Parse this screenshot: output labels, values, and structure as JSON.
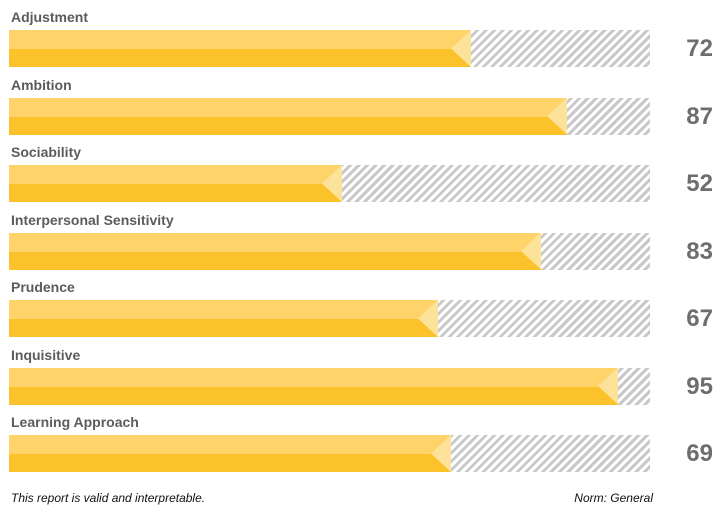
{
  "chart_data": {
    "type": "bar",
    "orientation": "horizontal",
    "categories": [
      "Adjustment",
      "Ambition",
      "Sociability",
      "Interpersonal Sensitivity",
      "Prudence",
      "Inquisitive",
      "Learning Approach"
    ],
    "values": [
      72,
      87,
      52,
      83,
      67,
      95,
      69
    ],
    "xlim": [
      0,
      100
    ],
    "title": "",
    "xlabel": "",
    "ylabel": ""
  },
  "footer": {
    "validity": "This report is valid and interpretable.",
    "norm": "Norm: General"
  },
  "colors": {
    "fill_light": "#fdd36a",
    "fill_dark": "#fcc22c",
    "marker": "#fde39a",
    "hatch": "#c9c9c9",
    "score_text": "#6e6e6e",
    "label_text": "#5c5c5c"
  }
}
